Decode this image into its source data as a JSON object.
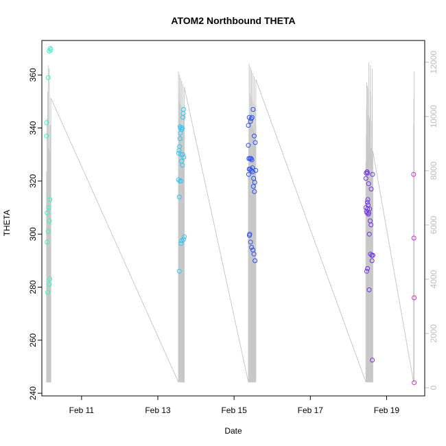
{
  "chart_data": {
    "type": "scatter",
    "title": "ATOM2 Northbound THETA",
    "xlabel": "Date",
    "ylabel": "THETA",
    "x_ticks": [
      "Feb 11",
      "Feb 13",
      "Feb 15",
      "Feb 17",
      "Feb 19"
    ],
    "y_ticks": [
      240,
      260,
      280,
      300,
      320,
      340,
      360
    ],
    "y2_ticks": [
      0,
      2000,
      4000,
      6000,
      8000,
      10000,
      12000
    ],
    "xlim": [
      "2020-02-09T23:00",
      "2020-02-20T00:00"
    ],
    "ylim": [
      239,
      373
    ],
    "y2lim": [
      -300,
      12800
    ],
    "grid": false,
    "legend": "none",
    "series": [
      {
        "color": "#33f5c1",
        "points": [
          [
            "2020-02-10T02:00",
            342
          ],
          [
            "2020-02-10T02:00",
            337
          ],
          [
            "2020-02-10T02:20",
            308
          ],
          [
            "2020-02-10T02:20",
            297
          ],
          [
            "2020-02-10T02:40",
            278
          ],
          [
            "2020-02-10T03:00",
            359
          ],
          [
            "2020-02-10T03:00",
            301
          ],
          [
            "2020-02-10T03:20",
            310
          ],
          [
            "2020-02-10T03:40",
            369
          ],
          [
            "2020-02-10T03:40",
            305
          ],
          [
            "2020-02-10T03:40",
            281
          ],
          [
            "2020-02-10T04:00",
            313
          ],
          [
            "2020-02-10T04:00",
            283
          ],
          [
            "2020-02-10T04:20",
            370
          ],
          [
            "2020-02-10T04:40",
            369.5
          ]
        ]
      },
      {
        "color": "#30c6f0",
        "points": [
          [
            "2020-02-13T13:00",
            320.5
          ],
          [
            "2020-02-13T13:10",
            330.5
          ],
          [
            "2020-02-13T13:20",
            331.5
          ],
          [
            "2020-02-13T13:30",
            314
          ],
          [
            "2020-02-13T13:30",
            286
          ],
          [
            "2020-02-13T13:40",
            333
          ],
          [
            "2020-02-13T13:50",
            320
          ],
          [
            "2020-02-13T14:00",
            336
          ],
          [
            "2020-02-13T14:00",
            340.5
          ],
          [
            "2020-02-13T14:10",
            338
          ],
          [
            "2020-02-13T14:20",
            340
          ],
          [
            "2020-02-13T14:30",
            330
          ],
          [
            "2020-02-13T14:40",
            320
          ],
          [
            "2020-02-13T14:40",
            296.5
          ],
          [
            "2020-02-13T14:50",
            327.5
          ],
          [
            "2020-02-13T15:00",
            339.5
          ],
          [
            "2020-02-13T15:00",
            297.5
          ],
          [
            "2020-02-13T15:20",
            340
          ],
          [
            "2020-02-13T15:30",
            326
          ],
          [
            "2020-02-13T15:40",
            330
          ],
          [
            "2020-02-13T15:50",
            344
          ],
          [
            "2020-02-13T16:00",
            345.5
          ],
          [
            "2020-02-13T16:10",
            347
          ],
          [
            "2020-02-13T16:10",
            298
          ],
          [
            "2020-02-13T16:20",
            329
          ],
          [
            "2020-02-13T16:40",
            299
          ]
        ]
      },
      {
        "color": "#2c4ff0",
        "points": [
          [
            "2020-02-15T09:00",
            341
          ],
          [
            "2020-02-15T09:00",
            333.5
          ],
          [
            "2020-02-15T09:10",
            322.5
          ],
          [
            "2020-02-15T09:20",
            328.5
          ],
          [
            "2020-02-15T09:30",
            344
          ],
          [
            "2020-02-15T09:30",
            324.5
          ],
          [
            "2020-02-15T09:40",
            299.5
          ],
          [
            "2020-02-15T09:50",
            300
          ],
          [
            "2020-02-15T10:00",
            328.5
          ],
          [
            "2020-02-15T10:10",
            324.5
          ],
          [
            "2020-02-15T10:20",
            342.5
          ],
          [
            "2020-02-15T10:20",
            297
          ],
          [
            "2020-02-15T10:40",
            328.5
          ],
          [
            "2020-02-15T10:50",
            343.5
          ],
          [
            "2020-02-15T10:50",
            324
          ],
          [
            "2020-02-15T11:00",
            295
          ],
          [
            "2020-02-15T11:10",
            328
          ],
          [
            "2020-02-15T11:20",
            344
          ],
          [
            "2020-02-15T11:30",
            325
          ],
          [
            "2020-02-15T11:40",
            323.5
          ],
          [
            "2020-02-15T11:50",
            294
          ],
          [
            "2020-02-15T12:00",
            347
          ],
          [
            "2020-02-15T12:10",
            318
          ],
          [
            "2020-02-15T12:20",
            321
          ],
          [
            "2020-02-15T12:30",
            292.5
          ],
          [
            "2020-02-15T12:40",
            337
          ],
          [
            "2020-02-15T12:50",
            316
          ],
          [
            "2020-02-15T13:00",
            319.5
          ],
          [
            "2020-02-15T13:10",
            290
          ],
          [
            "2020-02-15T13:20",
            334.5
          ],
          [
            "2020-02-15T13:40",
            324
          ]
        ]
      },
      {
        "color": "#6e33e0",
        "points": [
          [
            "2020-02-18T11:00",
            321
          ],
          [
            "2020-02-18T11:00",
            310
          ],
          [
            "2020-02-18T11:10",
            323
          ],
          [
            "2020-02-18T11:20",
            308.5
          ],
          [
            "2020-02-18T11:30",
            286
          ],
          [
            "2020-02-18T11:40",
            323.5
          ],
          [
            "2020-02-18T11:40",
            308
          ],
          [
            "2020-02-18T11:50",
            312
          ],
          [
            "2020-02-18T12:00",
            323
          ],
          [
            "2020-02-18T12:00",
            309.5
          ],
          [
            "2020-02-18T12:00",
            287
          ],
          [
            "2020-02-18T12:10",
            313
          ],
          [
            "2020-02-18T12:20",
            311
          ],
          [
            "2020-02-18T12:30",
            307.5
          ],
          [
            "2020-02-18T12:40",
            319
          ],
          [
            "2020-02-18T12:50",
            308
          ],
          [
            "2020-02-18T13:00",
            279
          ],
          [
            "2020-02-18T13:10",
            300
          ],
          [
            "2020-02-18T13:20",
            309.5
          ],
          [
            "2020-02-18T13:40",
            305
          ],
          [
            "2020-02-18T13:50",
            292.5
          ],
          [
            "2020-02-18T14:10",
            303.5
          ],
          [
            "2020-02-18T14:20",
            317
          ],
          [
            "2020-02-18T14:40",
            292
          ],
          [
            "2020-02-18T14:50",
            290
          ],
          [
            "2020-02-18T15:00",
            252.5
          ],
          [
            "2020-02-18T15:10",
            322.5
          ],
          [
            "2020-02-18T15:20",
            292
          ]
        ]
      },
      {
        "color": "#d12cde",
        "points": [
          [
            "2020-02-19T17:00",
            322.5
          ],
          [
            "2020-02-19T17:10",
            298.5
          ],
          [
            "2020-02-19T17:20",
            276
          ],
          [
            "2020-02-19T17:20",
            244
          ]
        ]
      }
    ]
  }
}
